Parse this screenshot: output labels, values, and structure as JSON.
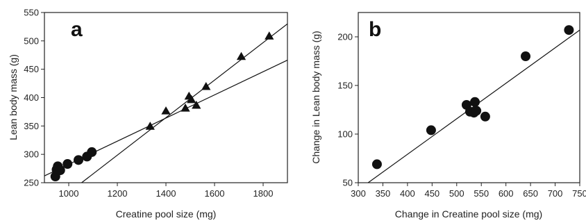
{
  "chart_data": [
    {
      "type": "scatter",
      "panel_label": "a",
      "xlabel": "Creatine pool size (mg)",
      "ylabel": "Lean body mass (g)",
      "xlim": [
        900,
        1900
      ],
      "ylim": [
        250,
        550
      ],
      "xticks": [
        1000,
        1200,
        1400,
        1600,
        1800
      ],
      "yticks": [
        250,
        300,
        350,
        400,
        450,
        500,
        550
      ],
      "grid": false,
      "legend": "none",
      "series": [
        {
          "marker": "circle",
          "x": [
            945,
            950,
            955,
            965,
            995,
            1040,
            1075,
            1095
          ],
          "y": [
            261,
            273,
            279,
            272,
            283,
            290,
            296,
            304
          ]
        },
        {
          "marker": "triangle",
          "x": [
            1335,
            1400,
            1480,
            1495,
            1505,
            1525,
            1565,
            1710,
            1825
          ],
          "y": [
            349,
            376,
            381,
            402,
            396,
            386,
            419,
            472,
            508
          ]
        }
      ],
      "lines": [
        {
          "x": [
            900,
            1900
          ],
          "y": [
            262,
            466
          ]
        },
        {
          "x": [
            1053,
            1900
          ],
          "y": [
            250,
            530
          ]
        }
      ]
    },
    {
      "type": "scatter",
      "panel_label": "b",
      "xlabel": "Change in Creatine pool size (mg)",
      "ylabel": "Change in Lean body mass (g)",
      "xlim": [
        300,
        750
      ],
      "ylim": [
        50,
        225
      ],
      "xticks": [
        300,
        350,
        400,
        450,
        500,
        550,
        600,
        650,
        700,
        750
      ],
      "yticks": [
        50,
        100,
        150,
        200
      ],
      "grid": false,
      "legend": "none",
      "series": [
        {
          "marker": "circle",
          "x": [
            338,
            448,
            520,
            527,
            535,
            537,
            540,
            558,
            640,
            728
          ],
          "y": [
            69,
            104,
            130,
            123,
            122,
            133,
            124,
            118,
            180,
            207
          ]
        }
      ],
      "lines": [
        {
          "x": [
            320,
            750
          ],
          "y": [
            50,
            207
          ]
        }
      ]
    }
  ]
}
